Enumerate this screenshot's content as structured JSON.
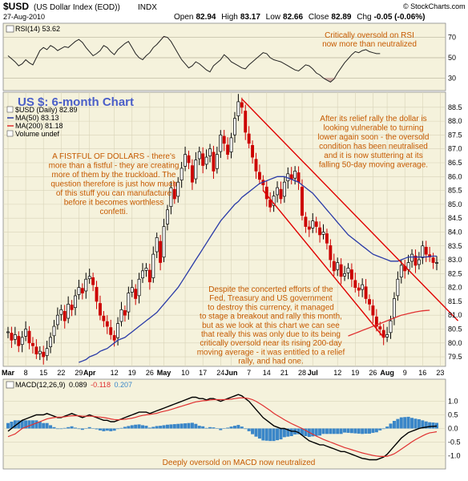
{
  "header": {
    "symbol": "$USD",
    "name": "(US Dollar Index (EOD))",
    "exchange": "INDX",
    "date": "27-Aug-2010",
    "credit": "© StockCharts.com",
    "open_label": "Open",
    "open": "82.94",
    "high_label": "High",
    "high": "83.17",
    "low_label": "Low",
    "low": "82.66",
    "close_label": "Close",
    "close": "82.89",
    "chg_label": "Chg",
    "chg": "-0.05 (-0.06%)"
  },
  "colors": {
    "panel_bg": "#f5f2dc",
    "price_up": "#000000",
    "price_down": "#cc0000",
    "ma50": "#2a3ba8",
    "ma200": "#e03030",
    "channel": "#e00000",
    "annotation": "#c65a00",
    "title": "#4a5ec8",
    "macd_hist": "#3a86c8"
  },
  "rsi_panel": {
    "legend": "RSI(14) 53.62",
    "annotation": [
      "Critically oversold on RSI",
      "now more than neutralized"
    ],
    "ticks": [
      "70",
      "50",
      "30"
    ],
    "values": [
      52,
      49,
      46,
      42,
      44,
      48,
      45,
      43,
      50,
      57,
      60,
      58,
      62,
      60,
      57,
      59,
      61,
      60,
      63,
      66,
      68,
      65,
      60,
      56,
      52,
      54,
      57,
      62,
      60,
      56,
      53,
      58,
      61,
      64,
      66,
      60,
      54,
      50,
      48,
      52,
      55,
      60,
      63,
      67,
      71,
      70,
      66,
      60,
      54,
      48,
      44,
      40,
      42,
      46,
      44,
      41,
      38,
      36,
      42,
      45,
      48,
      53,
      50,
      46,
      44,
      42,
      40,
      39,
      43,
      46,
      49,
      52,
      55,
      54,
      50,
      48,
      47,
      46,
      44,
      42,
      40,
      38,
      37,
      40,
      43,
      42,
      39,
      35,
      33,
      30,
      28,
      26,
      29,
      35,
      40,
      45,
      49,
      53,
      56,
      55,
      57,
      58,
      56,
      55,
      54,
      54
    ]
  },
  "price_panel": {
    "title": "US $: 6-month Chart",
    "legend": [
      {
        "icon": "price-bar-icon",
        "text": "$USD (Daily) 82.89"
      },
      {
        "icon": "ma50-line-icon",
        "text": "MA(50) 83.13"
      },
      {
        "icon": "ma200-line-icon",
        "text": "MA(200) 81.18"
      },
      {
        "icon": "volume-icon",
        "text": "Volume undef"
      }
    ],
    "annotations": {
      "fistful": [
        "A FISTFUL OF DOLLARS - there's",
        "more than a fistful - they are creating",
        "more of them by the truckload. The",
        "question therefore is just how much",
        "of this stuff you can manufacture",
        "before it becomes worthless",
        "confetti."
      ],
      "relief": [
        "After its relief rally the dollar is",
        "looking vulnerable to turning",
        "lower again soon - the oversold",
        "condition has been neutralised",
        "and it is now stuttering at its",
        "falling 50-day moving average."
      ],
      "despite": [
        "Despite the concerted efforts of the",
        "Fed, Treasury and US government",
        "to destroy this currency, it managed",
        "to stage a breakout and rally this month,",
        "but as we look at this chart we can see",
        "that really this was only due to its being",
        "critically oversold near its rising 200-day",
        "moving average - it was entitled to a relief",
        "rally, and had one."
      ]
    },
    "y_ticks": [
      "88.5",
      "88.0",
      "87.5",
      "87.0",
      "86.5",
      "86.0",
      "85.5",
      "85.0",
      "84.5",
      "84.0",
      "83.5",
      "83.0",
      "82.5",
      "82.0",
      "81.5",
      "81.0",
      "80.5",
      "80.0",
      "79.5"
    ]
  },
  "macd_panel": {
    "legend_prefix": "MACD(12,26,9)",
    "macd": "0.089",
    "signal": "-0.118",
    "hist": "0.207",
    "annotation": "Deeply oversold on MACD now neutralized",
    "ticks": [
      "1.0",
      "0.5",
      "0.0",
      "-0.5",
      "-1.0"
    ]
  },
  "x_axis": {
    "labels": [
      {
        "text": "Mar",
        "day": 0,
        "bold": true
      },
      {
        "text": "8",
        "day": 5
      },
      {
        "text": "15",
        "day": 10
      },
      {
        "text": "22",
        "day": 15
      },
      {
        "text": "29",
        "day": 20
      },
      {
        "text": "Apr",
        "day": 23,
        "bold": true
      },
      {
        "text": "12",
        "day": 30
      },
      {
        "text": "19",
        "day": 35
      },
      {
        "text": "26",
        "day": 40
      },
      {
        "text": "May",
        "day": 44,
        "bold": true
      },
      {
        "text": "10",
        "day": 50
      },
      {
        "text": "17",
        "day": 55
      },
      {
        "text": "24",
        "day": 60
      },
      {
        "text": "Jun",
        "day": 63,
        "bold": true
      },
      {
        "text": "7",
        "day": 68
      },
      {
        "text": "14",
        "day": 73
      },
      {
        "text": "21",
        "day": 78
      },
      {
        "text": "28",
        "day": 83
      },
      {
        "text": "Jul",
        "day": 86,
        "bold": true
      },
      {
        "text": "12",
        "day": 93
      },
      {
        "text": "19",
        "day": 98
      },
      {
        "text": "26",
        "day": 103
      },
      {
        "text": "Aug",
        "day": 107,
        "bold": true
      },
      {
        "text": "9",
        "day": 112
      },
      {
        "text": "16",
        "day": 117
      },
      {
        "text": "23",
        "day": 122
      }
    ]
  },
  "chart_data": {
    "type": "line",
    "title": "US $: 6-month Chart",
    "series": [
      {
        "name": "$USD (Daily)",
        "values": [
          80.4,
          80.1,
          80.3,
          79.9,
          80.2,
          80.5,
          80.0,
          79.9,
          79.6,
          79.7,
          79.5,
          79.8,
          80.2,
          80.6,
          81.0,
          81.2,
          80.8,
          81.4,
          81.2,
          81.7,
          82.0,
          81.8,
          82.3,
          82.4,
          82.1,
          81.5,
          81.0,
          80.8,
          80.6,
          80.3,
          80.1,
          80.7,
          81.2,
          81.0,
          81.8,
          82.0,
          81.6,
          82.3,
          82.6,
          82.7,
          82.2,
          83.2,
          83.8,
          82.9,
          84.2,
          84.8,
          85.6,
          85.2,
          85.8,
          86.3,
          86.8,
          86.5,
          85.8,
          86.6,
          86.9,
          86.4,
          86.7,
          87.0,
          86.2,
          86.8,
          87.5,
          87.2,
          86.8,
          87.4,
          88.1,
          88.7,
          88.5,
          87.6,
          87.2,
          86.7,
          86.2,
          85.9,
          85.7,
          85.2,
          84.9,
          85.3,
          85.6,
          85.2,
          85.8,
          86.1,
          85.9,
          86.2,
          85.8,
          84.6,
          84.2,
          84.1,
          84.4,
          84.2,
          83.9,
          84.0,
          83.6,
          83.0,
          82.6,
          82.9,
          82.4,
          82.5,
          82.7,
          82.3,
          82.0,
          81.9,
          82.1,
          81.6,
          81.4,
          81.0,
          80.6,
          80.5,
          80.2,
          80.3,
          80.8,
          81.6,
          82.3,
          82.8,
          82.6,
          82.9,
          83.2,
          82.8,
          83.0,
          83.5,
          83.2,
          83.1,
          82.9,
          82.9
        ]
      },
      {
        "name": "MA(50)",
        "values": [
          null,
          null,
          null,
          null,
          null,
          null,
          null,
          null,
          null,
          null,
          null,
          null,
          null,
          null,
          null,
          null,
          null,
          null,
          null,
          null,
          79.3,
          79.35,
          79.4,
          79.5,
          79.55,
          79.6,
          79.7,
          79.75,
          79.8,
          79.9,
          80.0,
          80.1,
          80.15,
          80.2,
          80.3,
          80.4,
          80.5,
          80.6,
          80.7,
          80.8,
          80.9,
          81.0,
          81.1,
          81.25,
          81.4,
          81.55,
          81.7,
          81.85,
          82.0,
          82.2,
          82.4,
          82.6,
          82.8,
          83.0,
          83.2,
          83.4,
          83.6,
          83.8,
          84.0,
          84.2,
          84.4,
          84.55,
          84.7,
          84.85,
          85.0,
          85.1,
          85.25,
          85.35,
          85.45,
          85.55,
          85.65,
          85.75,
          85.8,
          85.85,
          85.9,
          85.95,
          86.0,
          86.0,
          86.0,
          85.95,
          85.9,
          85.85,
          85.8,
          85.7,
          85.6,
          85.5,
          85.4,
          85.25,
          85.1,
          84.95,
          84.8,
          84.65,
          84.5,
          84.35,
          84.2,
          84.05,
          83.9,
          83.8,
          83.7,
          83.6,
          83.5,
          83.4,
          83.3,
          83.2,
          83.15,
          83.1,
          83.05,
          83.0,
          82.95,
          82.95,
          82.95,
          83.0,
          83.05,
          83.1,
          83.1,
          83.1,
          83.1,
          83.1,
          83.1,
          83.12,
          83.13,
          83.13
        ]
      },
      {
        "name": "MA(200)",
        "values": [
          null,
          null,
          null,
          null,
          null,
          null,
          null,
          null,
          null,
          null,
          null,
          null,
          null,
          null,
          null,
          null,
          null,
          null,
          null,
          null,
          null,
          null,
          null,
          null,
          null,
          null,
          null,
          null,
          null,
          null,
          null,
          null,
          null,
          null,
          null,
          null,
          null,
          null,
          null,
          null,
          null,
          null,
          null,
          null,
          null,
          null,
          null,
          null,
          null,
          null,
          null,
          null,
          null,
          null,
          null,
          null,
          null,
          null,
          null,
          null,
          null,
          null,
          null,
          null,
          null,
          null,
          null,
          null,
          null,
          null,
          null,
          null,
          null,
          null,
          null,
          null,
          null,
          null,
          null,
          null,
          null,
          null,
          null,
          null,
          null,
          null,
          null,
          null,
          null,
          null,
          null,
          null,
          null,
          null,
          null,
          null,
          80.25,
          80.3,
          80.35,
          80.4,
          80.45,
          80.5,
          80.55,
          80.6,
          80.65,
          80.7,
          80.75,
          80.8,
          80.85,
          80.9,
          80.95,
          81.0,
          81.03,
          81.06,
          81.09,
          81.12,
          81.14,
          81.16,
          81.17,
          81.18
        ]
      }
    ],
    "x": "trading days, 1-Mar-2010 to 27-Aug-2010",
    "ylim": [
      79.3,
      88.9
    ],
    "channel_lines": [
      {
        "from": {
          "day": 66,
          "price": 88.8
        },
        "to": {
          "day": 127,
          "price": 80.8
        }
      },
      {
        "from": {
          "day": 72,
          "price": 85.5
        },
        "to": {
          "day": 106,
          "price": 80.2
        }
      }
    ],
    "macd": [
      -0.1,
      0.0,
      0.1,
      0.2,
      0.3,
      0.35,
      0.4,
      0.45,
      0.5,
      0.5,
      0.5,
      0.55,
      0.5,
      0.45,
      0.4,
      0.4,
      0.45,
      0.5,
      0.55,
      0.5,
      0.45,
      0.4,
      0.45,
      0.5,
      0.45,
      0.4,
      0.35,
      0.3,
      0.3,
      0.25,
      0.25,
      0.3,
      0.35,
      0.4,
      0.45,
      0.5,
      0.55,
      0.6,
      0.6,
      0.6,
      0.55,
      0.6,
      0.65,
      0.7,
      0.75,
      0.8,
      0.85,
      0.9,
      0.95,
      1.0,
      1.05,
      1.1,
      1.15,
      1.15,
      1.1,
      1.1,
      1.05,
      1.1,
      1.1,
      1.05,
      1.0,
      1.05,
      1.1,
      1.15,
      1.2,
      1.25,
      1.2,
      1.1,
      1.0,
      0.85,
      0.7,
      0.55,
      0.4,
      0.3,
      0.2,
      0.1,
      0.05,
      0.0,
      0.0,
      -0.05,
      -0.1,
      -0.1,
      -0.15,
      -0.25,
      -0.35,
      -0.45,
      -0.5,
      -0.55,
      -0.6,
      -0.6,
      -0.65,
      -0.7,
      -0.75,
      -0.8,
      -0.85,
      -0.85,
      -0.9,
      -0.95,
      -1.0,
      -1.05,
      -1.1,
      -1.12,
      -1.15,
      -1.15,
      -1.15,
      -1.1,
      -1.05,
      -0.95,
      -0.8,
      -0.65,
      -0.5,
      -0.35,
      -0.25,
      -0.15,
      -0.1,
      -0.05,
      0.0,
      0.03,
      0.05,
      0.07,
      0.08,
      0.089
    ],
    "signal": [
      -0.3,
      -0.25,
      -0.2,
      -0.1,
      0.0,
      0.05,
      0.1,
      0.15,
      0.2,
      0.25,
      0.3,
      0.35,
      0.38,
      0.4,
      0.42,
      0.42,
      0.43,
      0.45,
      0.47,
      0.47,
      0.47,
      0.45,
      0.45,
      0.45,
      0.45,
      0.43,
      0.42,
      0.4,
      0.38,
      0.35,
      0.33,
      0.32,
      0.33,
      0.34,
      0.36,
      0.38,
      0.41,
      0.45,
      0.48,
      0.5,
      0.52,
      0.54,
      0.56,
      0.6,
      0.63,
      0.66,
      0.7,
      0.74,
      0.78,
      0.82,
      0.86,
      0.9,
      0.94,
      0.98,
      1.0,
      1.02,
      1.03,
      1.05,
      1.06,
      1.06,
      1.06,
      1.06,
      1.07,
      1.08,
      1.1,
      1.12,
      1.13,
      1.12,
      1.1,
      1.06,
      1.0,
      0.92,
      0.84,
      0.75,
      0.66,
      0.56,
      0.48,
      0.4,
      0.32,
      0.25,
      0.18,
      0.12,
      0.06,
      0.0,
      -0.07,
      -0.14,
      -0.21,
      -0.28,
      -0.34,
      -0.4,
      -0.45,
      -0.5,
      -0.55,
      -0.6,
      -0.65,
      -0.7,
      -0.74,
      -0.78,
      -0.82,
      -0.86,
      -0.9,
      -0.93,
      -0.96,
      -0.99,
      -1.01,
      -1.03,
      -1.03,
      -1.02,
      -0.98,
      -0.93,
      -0.85,
      -0.76,
      -0.67,
      -0.58,
      -0.49,
      -0.41,
      -0.34,
      -0.27,
      -0.21,
      -0.16,
      -0.14,
      -0.118
    ]
  }
}
